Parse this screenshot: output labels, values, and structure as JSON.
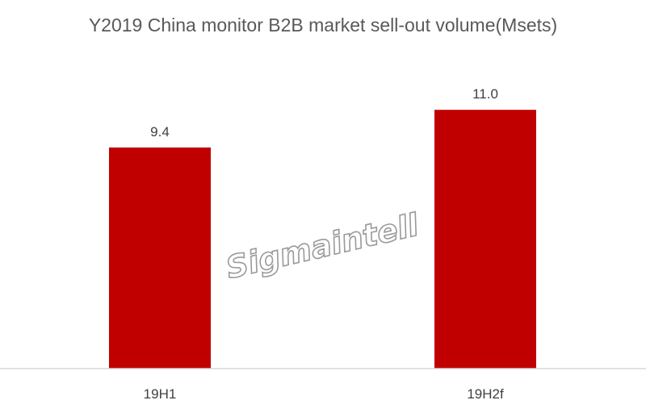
{
  "chart_data": {
    "type": "bar",
    "title": "Y2019 China monitor B2B market sell-out volume(Msets)",
    "categories": [
      "19H1",
      "19H2f"
    ],
    "values": [
      9.4,
      11.0
    ],
    "value_labels": [
      "9.4",
      "11.0"
    ],
    "xlabel": "",
    "ylabel": "",
    "ylim": [
      0,
      12
    ],
    "grid": false,
    "legend": "none",
    "bar_color": "#C00000"
  },
  "watermark": "Sigmaintell"
}
